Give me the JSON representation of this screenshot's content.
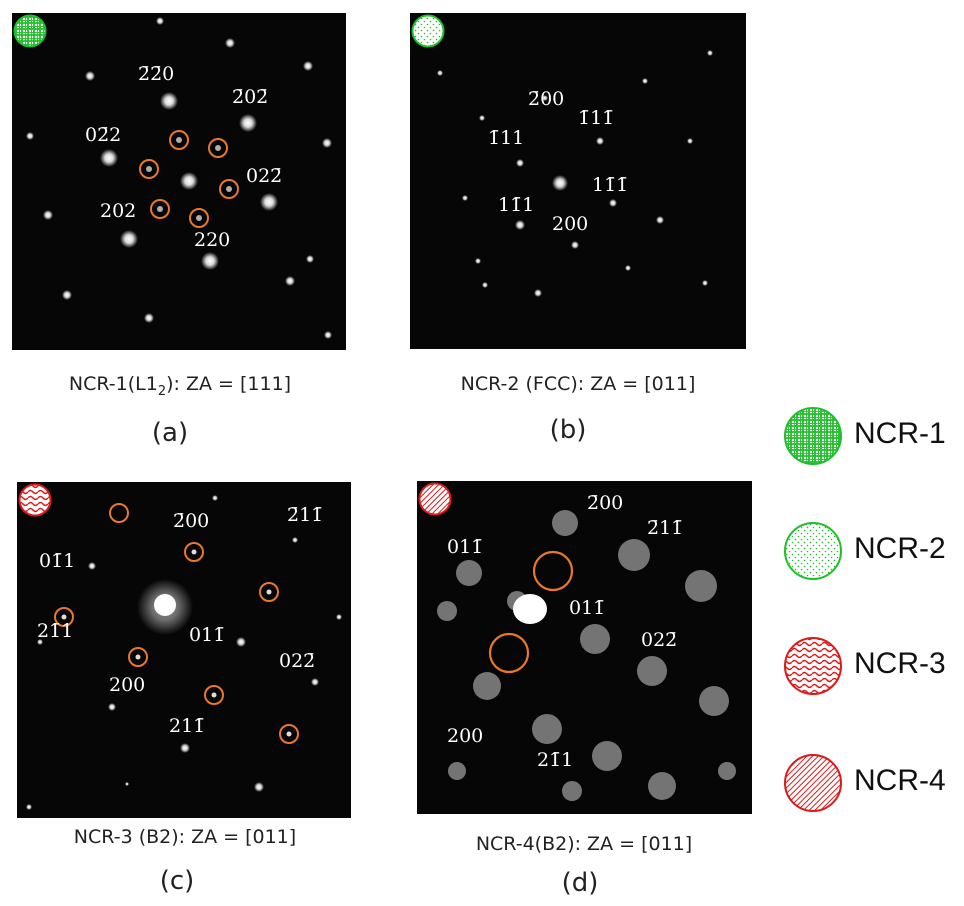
{
  "panels": {
    "a": {
      "caption_main": "NCR-1(L1",
      "caption_sub": "2",
      "caption_tail": "): ZA = [111]",
      "sublabel": "(a)",
      "indices": [
        "2̄2̄0",
        "2̄02̄",
        "02̄2",
        "022̄",
        "202",
        "220"
      ]
    },
    "b": {
      "caption": "NCR-2 (FCC): ZA = [011]",
      "sublabel": "(b)",
      "indices": [
        "2̄00",
        "1̄11̄",
        "1̄11",
        "11̄1̄",
        "11̄1",
        "200"
      ]
    },
    "c": {
      "caption": "NCR-3 (B2): ZA = [011]",
      "sublabel": "(c)",
      "indices": [
        "2̄00",
        "2̄11̄",
        "01̄1",
        "21̄1",
        "011̄",
        "022̄",
        "200",
        "211̄"
      ]
    },
    "d": {
      "caption": "NCR-4(B2): ZA = [011]",
      "sublabel": "(d)",
      "indices": [
        "2̄00",
        "2̄11̄",
        "011̄",
        "011̄",
        "022̄",
        "200",
        "21̄1"
      ]
    }
  },
  "legend": [
    {
      "label": "NCR-1",
      "pattern": "grid",
      "color": "#1fbf2a"
    },
    {
      "label": "NCR-2",
      "pattern": "dots",
      "color": "#1fbf2a"
    },
    {
      "label": "NCR-3",
      "pattern": "waves",
      "color": "#e01818"
    },
    {
      "label": "NCR-4",
      "pattern": "hatch",
      "color": "#e01818"
    }
  ],
  "colors": {
    "circle_marker": "#e8782a",
    "background": "#060606"
  }
}
